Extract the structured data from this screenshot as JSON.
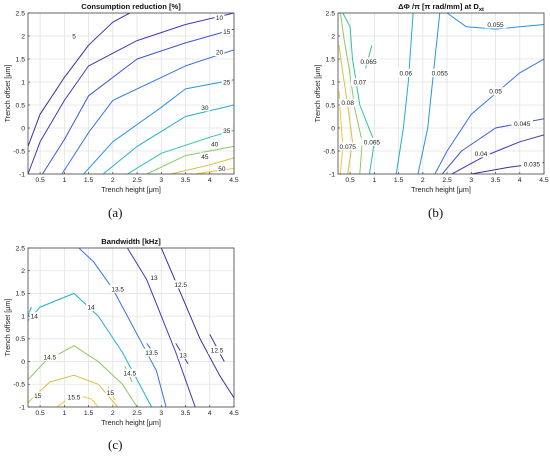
{
  "chart_data": [
    {
      "id": "a",
      "type": "contour",
      "title": "Consumption reduction [%]",
      "xlabel": "Trench height [μm]",
      "ylabel": "Trench offset [μm]",
      "xlim": [
        0.25,
        4.5
      ],
      "ylim": [
        -1,
        2.5
      ],
      "xticks": [
        "0.5",
        "1",
        "1.5",
        "2",
        "2.5",
        "3",
        "3.5",
        "4",
        "4.5"
      ],
      "xtick_values": [
        0.5,
        1,
        1.5,
        2,
        2.5,
        3,
        3.5,
        4,
        4.5
      ],
      "yticks": [
        "-1",
        "-0.5",
        "0",
        "0.5",
        "1",
        "1.5",
        "2",
        "2.5"
      ],
      "ytick_values": [
        -1,
        -0.5,
        0,
        0.5,
        1,
        1.5,
        2,
        2.5
      ],
      "grid": true,
      "caption": "(a)",
      "series": [
        {
          "name": "5",
          "color": "#3b2ea3",
          "points": [
            [
              0.25,
              -0.4
            ],
            [
              0.5,
              0.3
            ],
            [
              1,
              1.1
            ],
            [
              1.5,
              1.8
            ],
            [
              2.0,
              2.3
            ],
            [
              2.35,
              2.5
            ]
          ],
          "label_at": [
            1.2,
            2.0
          ]
        },
        {
          "name": "10",
          "color": "#4437b7",
          "points": [
            [
              0.25,
              -1.0
            ],
            [
              0.5,
              -0.3
            ],
            [
              1,
              0.6
            ],
            [
              1.5,
              1.35
            ],
            [
              2.5,
              1.9
            ],
            [
              3.5,
              2.25
            ],
            [
              4.5,
              2.5
            ]
          ],
          "label_at": [
            4.2,
            2.4
          ]
        },
        {
          "name": "15",
          "color": "#3f56d4",
          "points": [
            [
              0.55,
              -1.0
            ],
            [
              1,
              -0.25
            ],
            [
              1.5,
              0.7
            ],
            [
              2.5,
              1.5
            ],
            [
              3.5,
              1.85
            ],
            [
              4.5,
              2.15
            ]
          ],
          "label_at": [
            4.35,
            2.1
          ]
        },
        {
          "name": "20",
          "color": "#3574e6",
          "points": [
            [
              0.95,
              -1.0
            ],
            [
              1.5,
              -0.1
            ],
            [
              2,
              0.6
            ],
            [
              3,
              1.1
            ],
            [
              3.5,
              1.35
            ],
            [
              4.5,
              1.7
            ]
          ],
          "label_at": [
            4.2,
            1.65
          ]
        },
        {
          "name": "25",
          "color": "#2a92e6",
          "points": [
            [
              1.4,
              -1.0
            ],
            [
              2,
              -0.3
            ],
            [
              3,
              0.45
            ],
            [
              3.5,
              0.85
            ],
            [
              4.5,
              1.05
            ]
          ],
          "label_at": [
            4.35,
            1.0
          ]
        },
        {
          "name": "30",
          "color": "#1dafce",
          "points": [
            [
              1.8,
              -1.0
            ],
            [
              2.5,
              -0.4
            ],
            [
              3.5,
              0.25
            ],
            [
              4.5,
              0.5
            ]
          ],
          "label_at": [
            3.9,
            0.45
          ]
        },
        {
          "name": "35",
          "color": "#32c1a3",
          "points": [
            [
              2.3,
              -1.0
            ],
            [
              3,
              -0.55
            ],
            [
              4,
              -0.2
            ],
            [
              4.5,
              -0.05
            ]
          ],
          "label_at": [
            4.35,
            -0.05
          ]
        },
        {
          "name": "40",
          "color": "#88cb64",
          "points": [
            [
              2.7,
              -1.0
            ],
            [
              3.5,
              -0.6
            ],
            [
              4.5,
              -0.4
            ]
          ],
          "label_at": [
            4.1,
            -0.35
          ]
        },
        {
          "name": "45",
          "color": "#d6c03b",
          "points": [
            [
              3.2,
              -1.0
            ],
            [
              4,
              -0.8
            ],
            [
              4.5,
              -0.65
            ]
          ],
          "label_at": [
            3.9,
            -0.62
          ]
        },
        {
          "name": "50",
          "color": "#f2c633",
          "points": [
            [
              3.7,
              -1.0
            ],
            [
              4.2,
              -0.92
            ],
            [
              4.5,
              -0.88
            ]
          ],
          "label_at": [
            4.25,
            -0.88
          ]
        }
      ]
    },
    {
      "id": "b",
      "type": "contour",
      "title": "ΔΦ /π [π rad/mm] at D",
      "title_sub": "xt",
      "xlabel": "Trench height [μm]",
      "ylabel": "Trench offset [μm]",
      "xlim": [
        0.25,
        4.5
      ],
      "ylim": [
        -1,
        2.5
      ],
      "xticks": [
        "0.5",
        "1",
        "1.5",
        "2",
        "2.5",
        "3",
        "3.5",
        "4",
        "4.5"
      ],
      "xtick_values": [
        0.5,
        1,
        1.5,
        2,
        2.5,
        3,
        3.5,
        4,
        4.5
      ],
      "yticks": [
        "-1",
        "-0.5",
        "0",
        "0.5",
        "1",
        "1.5",
        "2",
        "2.5"
      ],
      "ytick_values": [
        -1,
        -0.5,
        0,
        0.5,
        1,
        1.5,
        2,
        2.5
      ],
      "grid": true,
      "caption": "(b)",
      "series": [
        {
          "name": "0.035",
          "color": "#3b2ea3",
          "points": [
            [
              3.0,
              -1.0
            ],
            [
              3.8,
              -0.85
            ],
            [
              4.5,
              -0.75
            ]
          ],
          "label_at": [
            4.25,
            -0.78
          ]
        },
        {
          "name": "0.04",
          "color": "#4437b7",
          "points": [
            [
              2.6,
              -1.0
            ],
            [
              3.3,
              -0.6
            ],
            [
              4.0,
              -0.3
            ],
            [
              4.5,
              -0.15
            ]
          ],
          "label_at": [
            3.2,
            -0.55
          ]
        },
        {
          "name": "0.045",
          "color": "#3f56d4",
          "points": [
            [
              2.4,
              -1.0
            ],
            [
              2.8,
              -0.5
            ],
            [
              3.5,
              0
            ],
            [
              4.5,
              0.2
            ]
          ],
          "label_at": [
            4.05,
            0.1
          ]
        },
        {
          "name": "0.05",
          "color": "#3574e6",
          "points": [
            [
              2.25,
              -1.0
            ],
            [
              2.5,
              -0.5
            ],
            [
              3.0,
              0.3
            ],
            [
              4.0,
              1.2
            ],
            [
              4.5,
              1.5
            ]
          ],
          "label_at": [
            3.5,
            0.8
          ]
        },
        {
          "name": "0.055",
          "color": "#2a92e6",
          "points": [
            [
              1.9,
              -1.0
            ],
            [
              2.1,
              0
            ],
            [
              2.25,
              1.5
            ],
            [
              2.35,
              2.5
            ]
          ],
          "label_at": [
            2.35,
            1.2
          ]
        },
        {
          "name": "0.055",
          "color": "#2a92e6",
          "points": [
            [
              2.5,
              2.5
            ],
            [
              2.9,
              2.2
            ],
            [
              3.5,
              2.15
            ],
            [
              4.5,
              2.25
            ]
          ],
          "label_at": [
            3.5,
            2.25
          ]
        },
        {
          "name": "0.06",
          "color": "#1dafce",
          "points": [
            [
              1.45,
              -1.0
            ],
            [
              1.6,
              0
            ],
            [
              1.7,
              1.0
            ],
            [
              1.8,
              2.5
            ]
          ],
          "label_at": [
            1.65,
            1.2
          ]
        },
        {
          "name": "0.065",
          "color": "#32c1a3",
          "points": [
            [
              0.9,
              -1.0
            ],
            [
              1.0,
              -0.3
            ],
            [
              0.7,
              0.5
            ],
            [
              0.55,
              1.5
            ],
            [
              0.5,
              2.2
            ],
            [
              0.35,
              2.5
            ]
          ],
          "label_at": [
            0.95,
            -0.3
          ]
        },
        {
          "name": "0.065",
          "color": "#32c1a3",
          "points": [
            [
              0.95,
              1.8
            ],
            [
              0.82,
              1.3
            ]
          ],
          "label_at": [
            0.88,
            1.45
          ]
        },
        {
          "name": "0.07",
          "color": "#88cb64",
          "points": [
            [
              0.7,
              -1.0
            ],
            [
              0.75,
              -0.3
            ],
            [
              0.6,
              0.4
            ],
            [
              0.48,
              1.3
            ],
            [
              0.38,
              1.9
            ],
            [
              0.3,
              2.5
            ]
          ],
          "label_at": [
            0.7,
            1.0
          ]
        },
        {
          "name": "0.075",
          "color": "#d6c03b",
          "points": [
            [
              0.45,
              -1.0
            ],
            [
              0.55,
              -0.3
            ],
            [
              0.45,
              0.5
            ],
            [
              0.35,
              1.2
            ],
            [
              0.27,
              1.8
            ]
          ],
          "label_at": [
            0.45,
            -0.4
          ]
        },
        {
          "name": "0.08",
          "color": "#f2c633",
          "points": [
            [
              0.3,
              -1.0
            ],
            [
              0.35,
              -0.4
            ],
            [
              0.3,
              0.3
            ],
            [
              0.27,
              0.8
            ]
          ],
          "label_at": [
            0.45,
            0.55
          ]
        }
      ]
    },
    {
      "id": "c",
      "type": "contour",
      "title": "Bandwidth [kHz]",
      "xlabel": "Trench height [μm]",
      "ylabel": "Trench offset [μm]",
      "xlim": [
        0.25,
        4.5
      ],
      "ylim": [
        -1,
        2.5
      ],
      "xticks": [
        "0.5",
        "1",
        "1.5",
        "2",
        "2.5",
        "3",
        "3.5",
        "4",
        "4.5"
      ],
      "xtick_values": [
        0.5,
        1,
        1.5,
        2,
        2.5,
        3,
        3.5,
        4,
        4.5
      ],
      "yticks": [
        "-1",
        "-0.5",
        "0",
        "0.5",
        "1",
        "1.5",
        "2",
        "2.5"
      ],
      "ytick_values": [
        -1,
        -0.5,
        0,
        0.5,
        1,
        1.5,
        2,
        2.5
      ],
      "grid": true,
      "caption": "(c)",
      "series": [
        {
          "name": "12.5",
          "color": "#3b2ea3",
          "points": [
            [
              3.0,
              2.5
            ],
            [
              3.4,
              1.5
            ],
            [
              3.8,
              0.5
            ],
            [
              4.2,
              -0.3
            ],
            [
              4.5,
              -0.8
            ]
          ],
          "label_at": [
            3.4,
            1.7
          ]
        },
        {
          "name": "12.5",
          "color": "#3b2ea3",
          "points": [
            [
              4.0,
              0.6
            ],
            [
              4.3,
              0
            ]
          ],
          "label_at": [
            4.15,
            0.25
          ]
        },
        {
          "name": "13",
          "color": "#4437b7",
          "points": [
            [
              2.3,
              2.5
            ],
            [
              2.7,
              1.8
            ],
            [
              3.0,
              1.0
            ],
            [
              3.3,
              0.2
            ],
            [
              3.7,
              -1.0
            ]
          ],
          "label_at": [
            2.85,
            1.85
          ]
        },
        {
          "name": "13",
          "color": "#4437b7",
          "points": [
            [
              3.3,
              0.4
            ],
            [
              3.55,
              -0.05
            ]
          ],
          "label_at": [
            3.45,
            0.15
          ]
        },
        {
          "name": "13.5",
          "color": "#3574e6",
          "points": [
            [
              1.3,
              2.5
            ],
            [
              1.6,
              2.2
            ],
            [
              2.0,
              1.6
            ],
            [
              2.5,
              0.6
            ],
            [
              2.9,
              -0.2
            ],
            [
              3.1,
              -1.0
            ]
          ],
          "label_at": [
            2.1,
            1.6
          ]
        },
        {
          "name": "13.5",
          "color": "#3574e6",
          "points": [
            [
              2.7,
              0.4
            ],
            [
              2.9,
              0.1
            ]
          ],
          "label_at": [
            2.8,
            0.2
          ]
        },
        {
          "name": "14",
          "color": "#1dafce",
          "points": [
            [
              0.25,
              0.9
            ],
            [
              0.5,
              1.2
            ],
            [
              1.2,
              1.5
            ],
            [
              1.7,
              1.0
            ],
            [
              2.2,
              0.2
            ],
            [
              2.5,
              -0.4
            ],
            [
              2.8,
              -1.0
            ]
          ],
          "label_at": [
            1.55,
            1.2
          ]
        },
        {
          "name": "14",
          "color": "#1dafce",
          "points": [
            [
              0.25,
              1.0
            ],
            [
              0.32,
              1.2
            ]
          ],
          "label_at": [
            0.38,
            1.0
          ]
        },
        {
          "name": "14.5",
          "color": "#88cb64",
          "points": [
            [
              0.25,
              -0.4
            ],
            [
              0.6,
              0.0
            ],
            [
              1.2,
              0.35
            ],
            [
              1.7,
              0.0
            ],
            [
              2.2,
              -0.5
            ],
            [
              2.5,
              -1.0
            ]
          ],
          "label_at": [
            0.7,
            0.1
          ]
        },
        {
          "name": "14.5",
          "color": "#88cb64",
          "points": [
            [
              2.25,
              -0.1
            ],
            [
              2.4,
              -0.45
            ]
          ],
          "label_at": [
            2.35,
            -0.25
          ]
        },
        {
          "name": "15",
          "color": "#d6c03b",
          "points": [
            [
              0.25,
              -0.9
            ],
            [
              0.7,
              -0.45
            ],
            [
              1.2,
              -0.3
            ],
            [
              1.7,
              -0.5
            ],
            [
              2.1,
              -1.0
            ]
          ],
          "label_at": [
            0.45,
            -0.75
          ]
        },
        {
          "name": "15",
          "color": "#d6c03b",
          "points": [
            [
              1.9,
              -0.55
            ],
            [
              2.05,
              -0.85
            ]
          ],
          "label_at": [
            1.95,
            -0.68
          ]
        },
        {
          "name": "15.5",
          "color": "#f2c633",
          "points": [
            [
              0.85,
              -1.0
            ],
            [
              1.2,
              -0.72
            ],
            [
              1.55,
              -0.82
            ],
            [
              1.7,
              -1.0
            ]
          ],
          "label_at": [
            1.2,
            -0.78
          ]
        }
      ]
    }
  ]
}
